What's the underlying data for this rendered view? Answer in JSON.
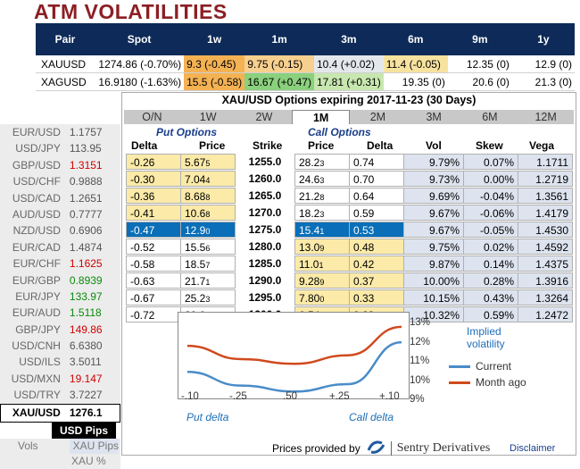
{
  "title": "ATM VOLATILITIES",
  "atm": {
    "headers": [
      "Pair",
      "Spot",
      "1w",
      "1m",
      "3m",
      "6m",
      "9m",
      "1y"
    ],
    "rows": [
      {
        "pair": "XAUUSD",
        "spot": "1274.86 (-0.70%)",
        "w1": "9.3 (-0.45)",
        "m1": "9.75 (-0.15)",
        "m3": "10.4 (+0.02)",
        "m6": "11.4 (-0.05)",
        "m9": "12.35 (0)",
        "y1": "12.9 (0)"
      },
      {
        "pair": "XAGUSD",
        "spot": "16.9180 (-1.63%)",
        "w1": "15.5 (-0.58)",
        "m1": "16.67 (+0.47)",
        "m3": "17.81 (+0.31)",
        "m6": "19.35 (0)",
        "m9": "20.6 (0)",
        "y1": "21.3 (0)"
      }
    ]
  },
  "left_panel": {
    "pairs": [
      {
        "pair": "EUR/USD",
        "value": "1.1757",
        "color": "normal"
      },
      {
        "pair": "USD/JPY",
        "value": "113.95",
        "color": "normal"
      },
      {
        "pair": "GBP/USD",
        "value": "1.3151",
        "color": "red"
      },
      {
        "pair": "USD/CHF",
        "value": "0.9888",
        "color": "normal"
      },
      {
        "pair": "USD/CAD",
        "value": "1.2651",
        "color": "normal"
      },
      {
        "pair": "AUD/USD",
        "value": "0.7777",
        "color": "normal"
      },
      {
        "pair": "NZD/USD",
        "value": "0.6906",
        "color": "normal"
      },
      {
        "pair": "EUR/CAD",
        "value": "1.4874",
        "color": "normal"
      },
      {
        "pair": "EUR/CHF",
        "value": "1.1625",
        "color": "red"
      },
      {
        "pair": "EUR/GBP",
        "value": "0.8939",
        "color": "green"
      },
      {
        "pair": "EUR/JPY",
        "value": "133.97",
        "color": "green"
      },
      {
        "pair": "EUR/AUD",
        "value": "1.5118",
        "color": "green"
      },
      {
        "pair": "GBP/JPY",
        "value": "149.86",
        "color": "red"
      },
      {
        "pair": "USD/CNH",
        "value": "6.6380",
        "color": "normal"
      },
      {
        "pair": "USD/ILS",
        "value": "3.5011",
        "color": "normal"
      },
      {
        "pair": "USD/MXN",
        "value": "19.147",
        "color": "red"
      },
      {
        "pair": "USD/TRY",
        "value": "3.7227",
        "color": "normal"
      }
    ],
    "selected": {
      "pair": "XAU/USD",
      "value": "1276.1"
    },
    "usd_pips": "USD Pips",
    "vols": "Vols",
    "xau_pips": "XAU Pips",
    "xau_pct": "XAU %"
  },
  "options": {
    "title": "XAU/USD Options expiring 2017-11-23 (30 Days)",
    "tabs": [
      "O/N",
      "1W",
      "2W",
      "1M",
      "2M",
      "3M",
      "6M",
      "12M"
    ],
    "active_tab": "1M",
    "put_header": "Put Options",
    "call_header": "Call Options",
    "cols": {
      "delta": "Delta",
      "price": "Price",
      "strike": "Strike",
      "cprice": "Price",
      "cdelta": "Delta",
      "vol": "Vol",
      "skew": "Skew",
      "vega": "Vega"
    },
    "rows": [
      {
        "pd": "-0.26",
        "pp": "5.67",
        "pps": "5",
        "k": "1255.0",
        "cp": "28.2",
        "cps": "3",
        "cd": "0.74",
        "v": "9.79%",
        "s": "0.07%",
        "g": "1.1711",
        "put_y": true,
        "call_y": false
      },
      {
        "pd": "-0.30",
        "pp": "7.04",
        "pps": "4",
        "k": "1260.0",
        "cp": "24.6",
        "cps": "3",
        "cd": "0.70",
        "v": "9.73%",
        "s": "0.00%",
        "g": "1.2719",
        "put_y": true,
        "call_y": false
      },
      {
        "pd": "-0.36",
        "pp": "8.68",
        "pps": "8",
        "k": "1265.0",
        "cp": "21.2",
        "cps": "8",
        "cd": "0.64",
        "v": "9.69%",
        "s": "-0.04%",
        "g": "1.3561",
        "put_y": true,
        "call_y": false
      },
      {
        "pd": "-0.41",
        "pp": "10.6",
        "pps": "8",
        "k": "1270.0",
        "cp": "18.2",
        "cps": "3",
        "cd": "0.59",
        "v": "9.67%",
        "s": "-0.06%",
        "g": "1.4179",
        "put_y": true,
        "call_y": false
      },
      {
        "pd": "-0.47",
        "pp": "12.9",
        "pps": "0",
        "k": "1275.0",
        "cp": "15.4",
        "cps": "1",
        "cd": "0.53",
        "v": "9.67%",
        "s": "-0.05%",
        "g": "1.4530",
        "put_y": false,
        "call_y": false,
        "hl": true
      },
      {
        "pd": "-0.52",
        "pp": "15.5",
        "pps": "6",
        "k": "1280.0",
        "cp": "13.0",
        "cps": "9",
        "cd": "0.48",
        "v": "9.75%",
        "s": "0.02%",
        "g": "1.4592",
        "put_y": false,
        "call_y": true
      },
      {
        "pd": "-0.58",
        "pp": "18.5",
        "pps": "7",
        "k": "1285.0",
        "cp": "11.0",
        "cps": "1",
        "cd": "0.42",
        "v": "9.87%",
        "s": "0.14%",
        "g": "1.4375",
        "put_y": false,
        "call_y": true
      },
      {
        "pd": "-0.63",
        "pp": "21.7",
        "pps": "1",
        "k": "1290.0",
        "cp": "9.28",
        "cps": "9",
        "cd": "0.37",
        "v": "10.00%",
        "s": "0.28%",
        "g": "1.3916",
        "put_y": false,
        "call_y": true
      },
      {
        "pd": "-0.67",
        "pp": "25.2",
        "pps": "3",
        "k": "1295.0",
        "cp": "7.80",
        "cps": "0",
        "cd": "0.33",
        "v": "10.15%",
        "s": "0.43%",
        "g": "1.3264",
        "put_y": false,
        "call_y": true
      },
      {
        "pd": "-0.72",
        "pp": "29.0",
        "pps": "9",
        "k": "1300.0",
        "cp": "6.54",
        "cps": "9",
        "cd": "0.28",
        "v": "10.32%",
        "s": "0.59%",
        "g": "1.2472",
        "put_y": false,
        "call_y": true
      }
    ]
  },
  "chart_data": {
    "type": "line",
    "title": "Implied volatility",
    "x": [
      "-.10",
      "-.25",
      ".50",
      "+.25",
      "+.10"
    ],
    "xlabel_left": "Put delta",
    "xlabel_right": "Call delta",
    "ylim": [
      9,
      13
    ],
    "yticks": [
      "13%",
      "12%",
      "11%",
      "10%",
      "9%"
    ],
    "series": [
      {
        "name": "Current",
        "color": "#4a8cc8",
        "values": [
          10.5,
          9.92,
          9.67,
          9.98,
          11.75
        ]
      },
      {
        "name": "Month ago",
        "color": "#d04a1e",
        "values": [
          11.6,
          11.04,
          10.84,
          11.2,
          12.4
        ]
      }
    ]
  },
  "footer": {
    "provided_by": "Prices provided by",
    "brand": "Sentry Derivatives",
    "disclaimer": "Disclaimer"
  }
}
